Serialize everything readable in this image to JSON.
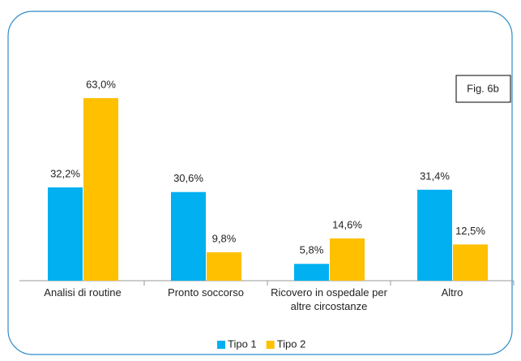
{
  "chart_data": {
    "type": "bar",
    "categories": [
      "Analisi di routine",
      "Pronto soccorso",
      "Ricovero in ospedale per altre circostanze",
      "Altro"
    ],
    "series": [
      {
        "name": "Tipo 1",
        "color": "#00b0f0",
        "values": [
          32.2,
          30.6,
          5.8,
          31.4
        ],
        "value_labels": [
          "32,2%",
          "30,6%",
          "5,8%",
          "31,4%"
        ]
      },
      {
        "name": "Tipo 2",
        "color": "#ffc000",
        "values": [
          63.0,
          9.8,
          14.6,
          12.5
        ],
        "value_labels": [
          "63,0%",
          "9,8%",
          "14,6%",
          "12,5%"
        ]
      }
    ],
    "annotation": "Fig. 6b",
    "legend": "bottom"
  }
}
